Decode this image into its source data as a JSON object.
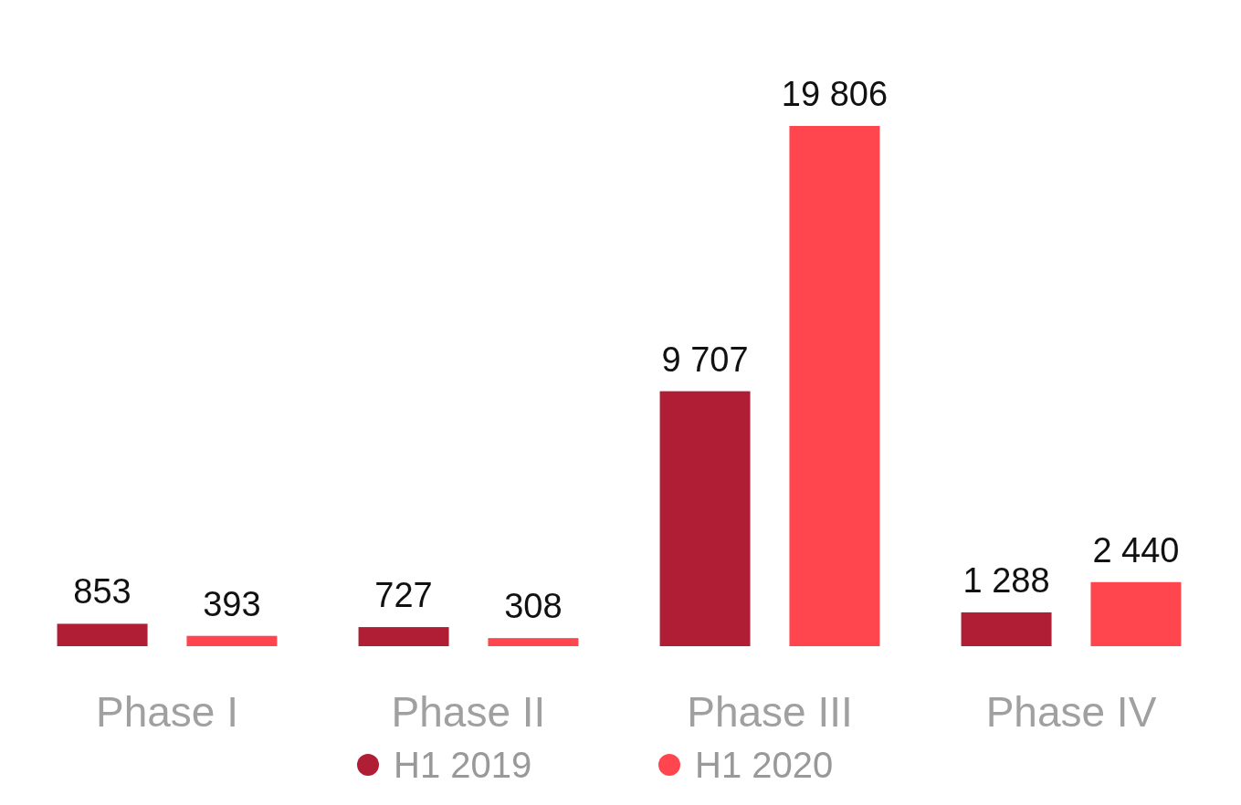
{
  "chart_data": {
    "type": "bar",
    "categories": [
      "Phase I",
      "Phase II",
      "Phase III",
      "Phase IV"
    ],
    "series": [
      {
        "name": "H1 2019",
        "color": "#b01e36",
        "values": [
          853,
          727,
          9707,
          1288
        ],
        "value_labels": [
          "853",
          "727",
          "9 707",
          "1 288"
        ]
      },
      {
        "name": "H1 2020",
        "color": "#ff464e",
        "values": [
          393,
          308,
          19806,
          2440
        ],
        "value_labels": [
          "393",
          "308",
          "19 806",
          "2 440"
        ]
      }
    ],
    "ylim": [
      0,
      19806
    ],
    "legend": "bottom",
    "grid": false
  }
}
